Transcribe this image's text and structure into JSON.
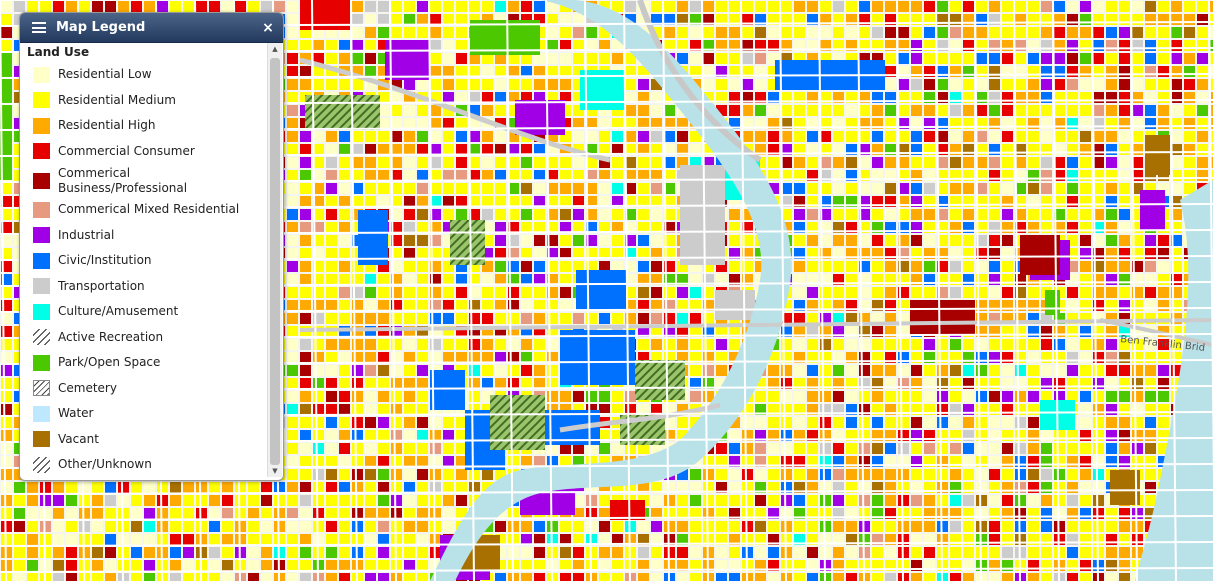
{
  "legend": {
    "title": "Map Legend",
    "close_label": "×",
    "section_title": "Land Use",
    "items": [
      {
        "label": "Residential Low",
        "color": "#ffffc8",
        "pattern": "solid"
      },
      {
        "label": "Residential Medium",
        "color": "#ffff00",
        "pattern": "solid"
      },
      {
        "label": "Residential High",
        "color": "#ffaa00",
        "pattern": "solid"
      },
      {
        "label": "Commercial Consumer",
        "color": "#e60000",
        "pattern": "solid"
      },
      {
        "label": "Commerical Business/Professional",
        "color": "#a80000",
        "pattern": "solid"
      },
      {
        "label": "Commerical Mixed Residential",
        "color": "#e69a80",
        "pattern": "solid"
      },
      {
        "label": "Industrial",
        "color": "#a100e6",
        "pattern": "solid"
      },
      {
        "label": "Civic/Institution",
        "color": "#0070ff",
        "pattern": "solid"
      },
      {
        "label": "Transportation",
        "color": "#cccccc",
        "pattern": "solid"
      },
      {
        "label": "Culture/Amusement",
        "color": "#00ffe6",
        "pattern": "solid"
      },
      {
        "label": "Active Recreation",
        "color": "#ffffff",
        "pattern": "hatch"
      },
      {
        "label": "Park/Open Space",
        "color": "#4cc800",
        "pattern": "solid"
      },
      {
        "label": "Cemetery",
        "color": "#ffffff",
        "pattern": "hatch-boxed"
      },
      {
        "label": "Water",
        "color": "#bee8ff",
        "pattern": "solid"
      },
      {
        "label": "Vacant",
        "color": "#a87000",
        "pattern": "solid"
      },
      {
        "label": "Other/Unknown",
        "color": "#ffffff",
        "pattern": "hatch"
      }
    ]
  },
  "map": {
    "street_labels": [
      "Ben Franklin Brid"
    ],
    "colors": {
      "background": "#f4f4f0",
      "river": "#b9e1e8",
      "road": "#ffffff",
      "hatch_green": "#4f7f2f"
    }
  }
}
